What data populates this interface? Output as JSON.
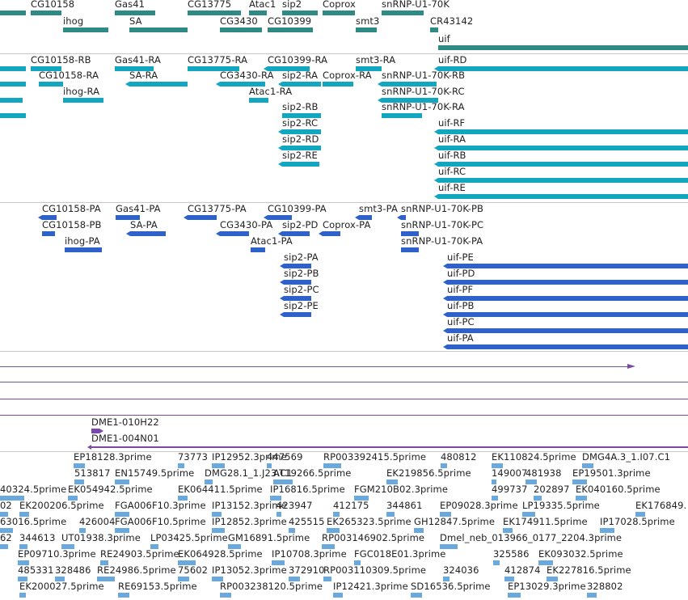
{
  "colors": {
    "gene": "#2f8a86",
    "transcript": "#13a6c0",
    "protein": "#2e62c9",
    "clone": "#7a4aa8",
    "est": "#6aa9de",
    "divider": "#c8c8c8"
  },
  "genes": [
    {
      "id": "g0",
      "label": ""
    },
    {
      "id": "g1",
      "label": "CG10158"
    },
    {
      "id": "g2",
      "label": "Gas41"
    },
    {
      "id": "g3",
      "label": "CG13775"
    },
    {
      "id": "g4",
      "label": "Atac1"
    },
    {
      "id": "g5",
      "label": "sip2"
    },
    {
      "id": "g6",
      "label": "Coprox"
    },
    {
      "id": "g7",
      "label": "snRNP-U1-70K"
    },
    {
      "id": "g8",
      "label": "ihog"
    },
    {
      "id": "g9",
      "label": "SA"
    },
    {
      "id": "g10",
      "label": "CG3430"
    },
    {
      "id": "g11",
      "label": "CG10399"
    },
    {
      "id": "g12",
      "label": "smt3"
    },
    {
      "id": "g13",
      "label": "CR43142"
    },
    {
      "id": "g14",
      "label": "uif"
    }
  ],
  "transcripts": [
    {
      "id": "t0",
      "label": ""
    },
    {
      "id": "t1",
      "label": "CG10158-RB"
    },
    {
      "id": "t2",
      "label": "Gas41-RA"
    },
    {
      "id": "t3",
      "label": "CG13775-RA"
    },
    {
      "id": "t4",
      "label": "CG10399-RA"
    },
    {
      "id": "t5",
      "label": "smt3-RA"
    },
    {
      "id": "t6",
      "label": "uif-RD"
    },
    {
      "id": "t7",
      "label": ""
    },
    {
      "id": "t8",
      "label": "CG10158-RA"
    },
    {
      "id": "t9",
      "label": "SA-RA"
    },
    {
      "id": "t10",
      "label": "CG3430-RA"
    },
    {
      "id": "t11",
      "label": "sip2-RA"
    },
    {
      "id": "t12",
      "label": "Coprox-RA"
    },
    {
      "id": "t13",
      "label": "snRNP-U1-70K-RB"
    },
    {
      "id": "t14",
      "label": ""
    },
    {
      "id": "t15",
      "label": "ihog-RA"
    },
    {
      "id": "t16",
      "label": "Atac1-RA"
    },
    {
      "id": "t17",
      "label": "snRNP-U1-70K-RC"
    },
    {
      "id": "t18",
      "label": "snRNP-U1-70K-RA"
    },
    {
      "id": "t19",
      "label": ""
    },
    {
      "id": "t20",
      "label": "sip2-RB"
    },
    {
      "id": "t21",
      "label": "sip2-RC"
    },
    {
      "id": "t22",
      "label": "uif-RF"
    },
    {
      "id": "t23",
      "label": "sip2-RD"
    },
    {
      "id": "t24",
      "label": "uif-RA"
    },
    {
      "id": "t25",
      "label": "sip2-RE"
    },
    {
      "id": "t26",
      "label": "uif-RB"
    },
    {
      "id": "t27",
      "label": "uif-RC"
    },
    {
      "id": "t28",
      "label": "uif-RE"
    }
  ],
  "proteins": [
    {
      "id": "p1",
      "label": "CG10158-PA"
    },
    {
      "id": "p2",
      "label": "Gas41-PA"
    },
    {
      "id": "p3",
      "label": "CG13775-PA"
    },
    {
      "id": "p4",
      "label": "CG10399-PA"
    },
    {
      "id": "p5",
      "label": "smt3-PA"
    },
    {
      "id": "p6",
      "label": "snRNP-U1-70K-PB"
    },
    {
      "id": "p7",
      "label": "CG10158-PB"
    },
    {
      "id": "p8",
      "label": "SA-PA"
    },
    {
      "id": "p9",
      "label": "CG3430-PA"
    },
    {
      "id": "p10",
      "label": "sip2-PD"
    },
    {
      "id": "p11",
      "label": "Coprox-PA"
    },
    {
      "id": "p12",
      "label": "snRNP-U1-70K-PC"
    },
    {
      "id": "p13",
      "label": "ihog-PA"
    },
    {
      "id": "p14",
      "label": "Atac1-PA"
    },
    {
      "id": "p15",
      "label": "snRNP-U1-70K-PA"
    },
    {
      "id": "p16",
      "label": "sip2-PA"
    },
    {
      "id": "p17",
      "label": "uif-PE"
    },
    {
      "id": "p18",
      "label": "sip2-PB"
    },
    {
      "id": "p19",
      "label": "uif-PD"
    },
    {
      "id": "p20",
      "label": "sip2-PC"
    },
    {
      "id": "p21",
      "label": "uif-PF"
    },
    {
      "id": "p22",
      "label": "sip2-PE"
    },
    {
      "id": "p23",
      "label": "uif-PB"
    },
    {
      "id": "p24",
      "label": "uif-PC"
    },
    {
      "id": "p25",
      "label": "uif-PA"
    }
  ],
  "clones": [
    {
      "id": "c1",
      "label": "DME1-010H22"
    },
    {
      "id": "c2",
      "label": "DME1-004N01"
    }
  ],
  "ests": [
    "EP18128.3prime",
    "73773",
    "IP12952.3prime",
    "447569",
    "RP003392415.5prime",
    "480812",
    "EK110824.5prime",
    "DMG4A.3_1.I07.C1",
    "513817",
    "EN15749.5prime",
    "DMG28.1_1.J23.C1",
    "AT19266.5prime",
    "EK219856.5prime",
    "149007",
    "481938",
    "EP19501.3prime",
    "40324.5prime",
    "EK054942.5prime",
    "EK064411.5prime",
    "IP16816.5prime",
    "FGM210B02.3prime",
    "499737",
    "202897",
    "EK040160.5prime",
    "02",
    "EK200206.5prime",
    "FGA006F10.3prime",
    "IP13152.3prime",
    "423947",
    "412175",
    "344861",
    "EP09028.3prime",
    "LP19335.5prime",
    "EK176849.",
    "63016.5prime",
    "426004",
    "FGA006F10.5prime",
    "IP12852.3prime",
    "425515",
    "EK265323.5prime",
    "GH12847.5prime",
    "EK174911.5prime",
    "IP17028.5prime",
    "62",
    "344613",
    "UT01938.3prime",
    "LP03425.5prime",
    "GM16891.5prime",
    "RP003146902.5prime",
    "Dmel_neb_013966_0177_2204.3prime",
    "EP09710.3prime",
    "RE24903.5prime",
    "EK064928.5prime",
    "IP10708.3prime",
    "FGC018E01.3prime",
    "325586",
    "EK093032.5prime",
    "485331",
    "328486",
    "RE24986.5prime",
    "75602",
    "IP13052.3prime",
    "372910",
    "RP003110309.5prime",
    "324036",
    "412874",
    "EK227816.5prime",
    "EK200027.5prime",
    "RE69153.5prime",
    "RP003238120.5prime",
    "IP12421.3prime",
    "SD16536.5prime",
    "EP13029.3prime",
    "328802"
  ]
}
